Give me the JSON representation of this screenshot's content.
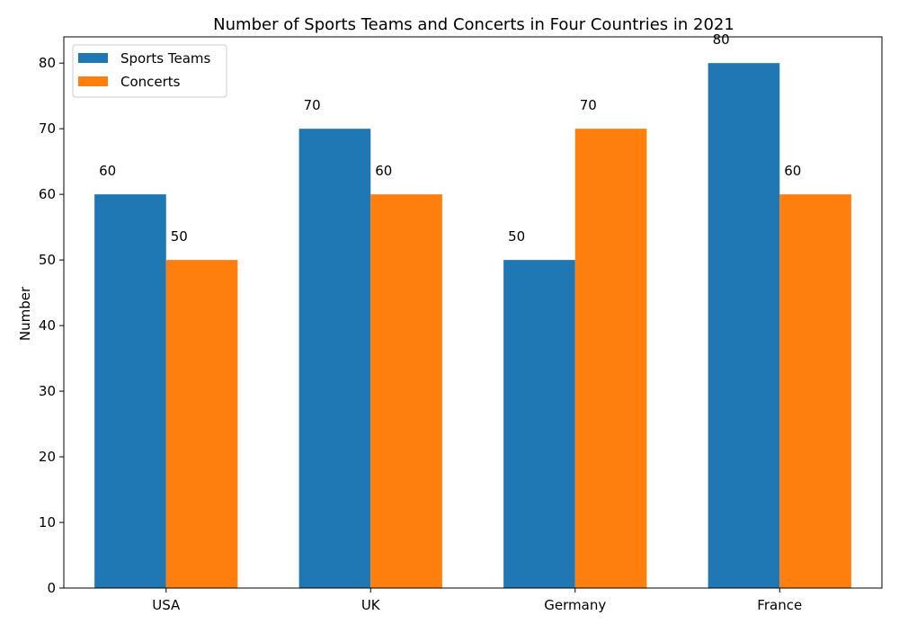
{
  "chart_data": {
    "type": "bar",
    "title": "Number of Sports Teams and Concerts in Four Countries in 2021",
    "xlabel": "",
    "ylabel": "Number",
    "categories": [
      "USA",
      "UK",
      "Germany",
      "France"
    ],
    "series": [
      {
        "name": "Sports Teams",
        "values": [
          60,
          70,
          50,
          80
        ],
        "color": "#1f77b4"
      },
      {
        "name": "Concerts",
        "values": [
          50,
          60,
          70,
          60
        ],
        "color": "#ff7f0e"
      }
    ],
    "ylim": [
      0,
      84
    ],
    "yticks": [
      0,
      10,
      20,
      30,
      40,
      50,
      60,
      70,
      80
    ],
    "grid": false,
    "legend_position": "top-left",
    "data_labels": true
  }
}
